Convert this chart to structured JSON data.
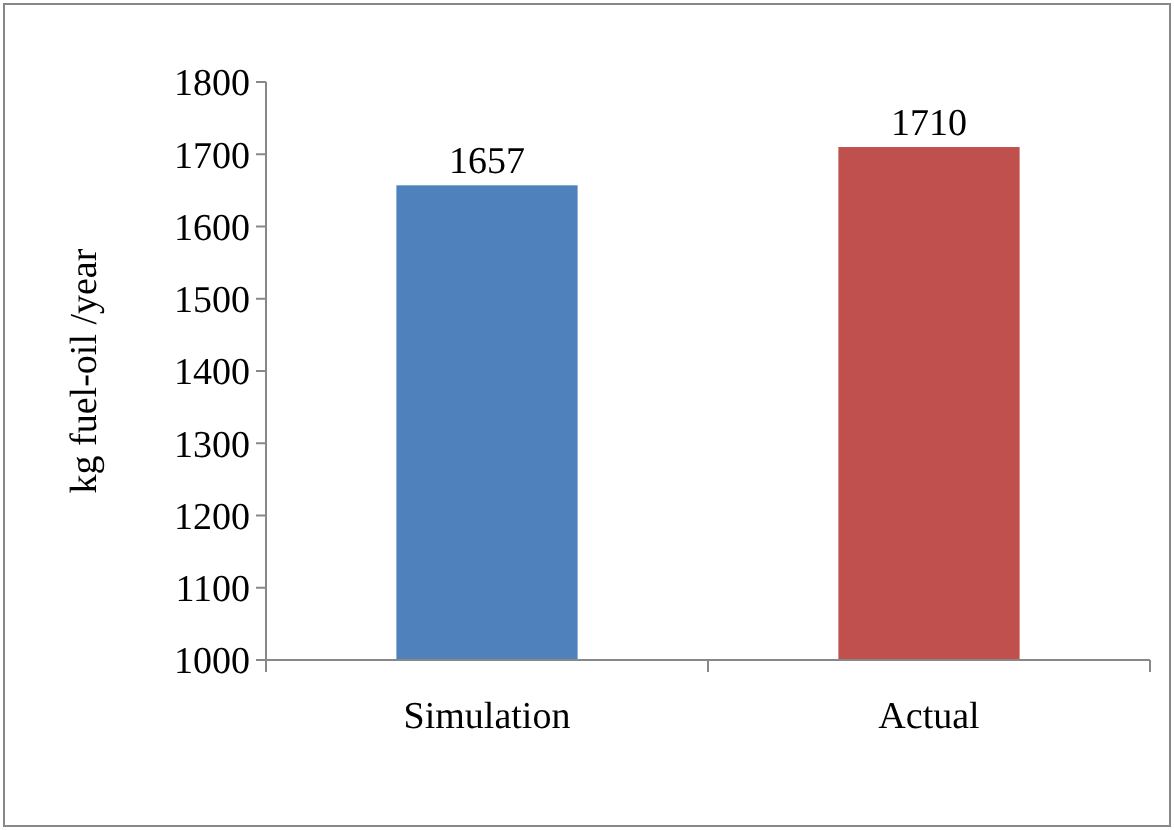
{
  "chart_data": {
    "type": "bar",
    "ylabel": "kg fuel-oil /year",
    "categories": [
      "Simulation",
      "Actual"
    ],
    "values": [
      1657,
      1710
    ],
    "colors": [
      "#4f81bd",
      "#c0504d"
    ],
    "ylim": [
      1000,
      1800
    ],
    "yticks": [
      1000,
      1100,
      1200,
      1300,
      1400,
      1500,
      1600,
      1700,
      1800
    ],
    "data_labels": true,
    "grid": false
  }
}
